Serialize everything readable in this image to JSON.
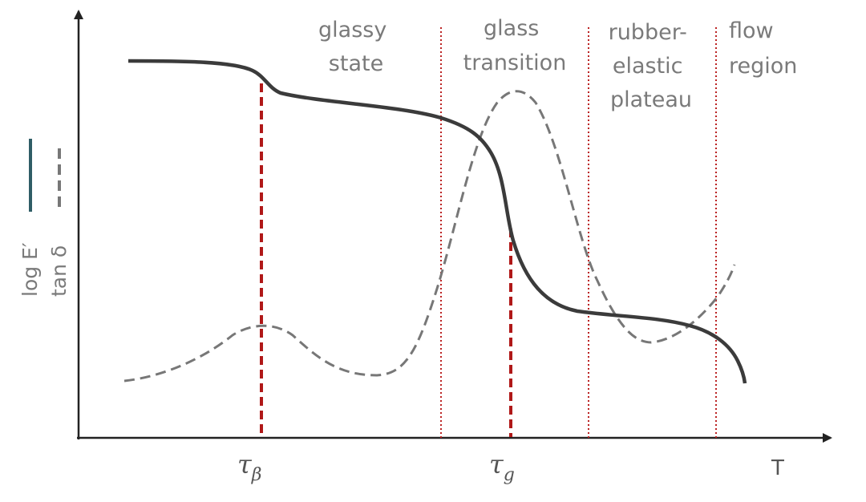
{
  "regions": [
    {
      "lines": [
        "glassy",
        "state"
      ]
    },
    {
      "lines": [
        "glass",
        "transition"
      ]
    },
    {
      "lines": [
        "rubber-",
        "elastic",
        "plateau"
      ]
    },
    {
      "lines": [
        "flow",
        "region"
      ]
    }
  ],
  "legend": {
    "modulus": "log E′",
    "damping": "tan δ"
  },
  "x_axis": {
    "label": "T"
  },
  "markers": [
    {
      "symbol": "τ",
      "subscript": "β"
    },
    {
      "symbol": "τ",
      "subscript": "g"
    }
  ]
}
